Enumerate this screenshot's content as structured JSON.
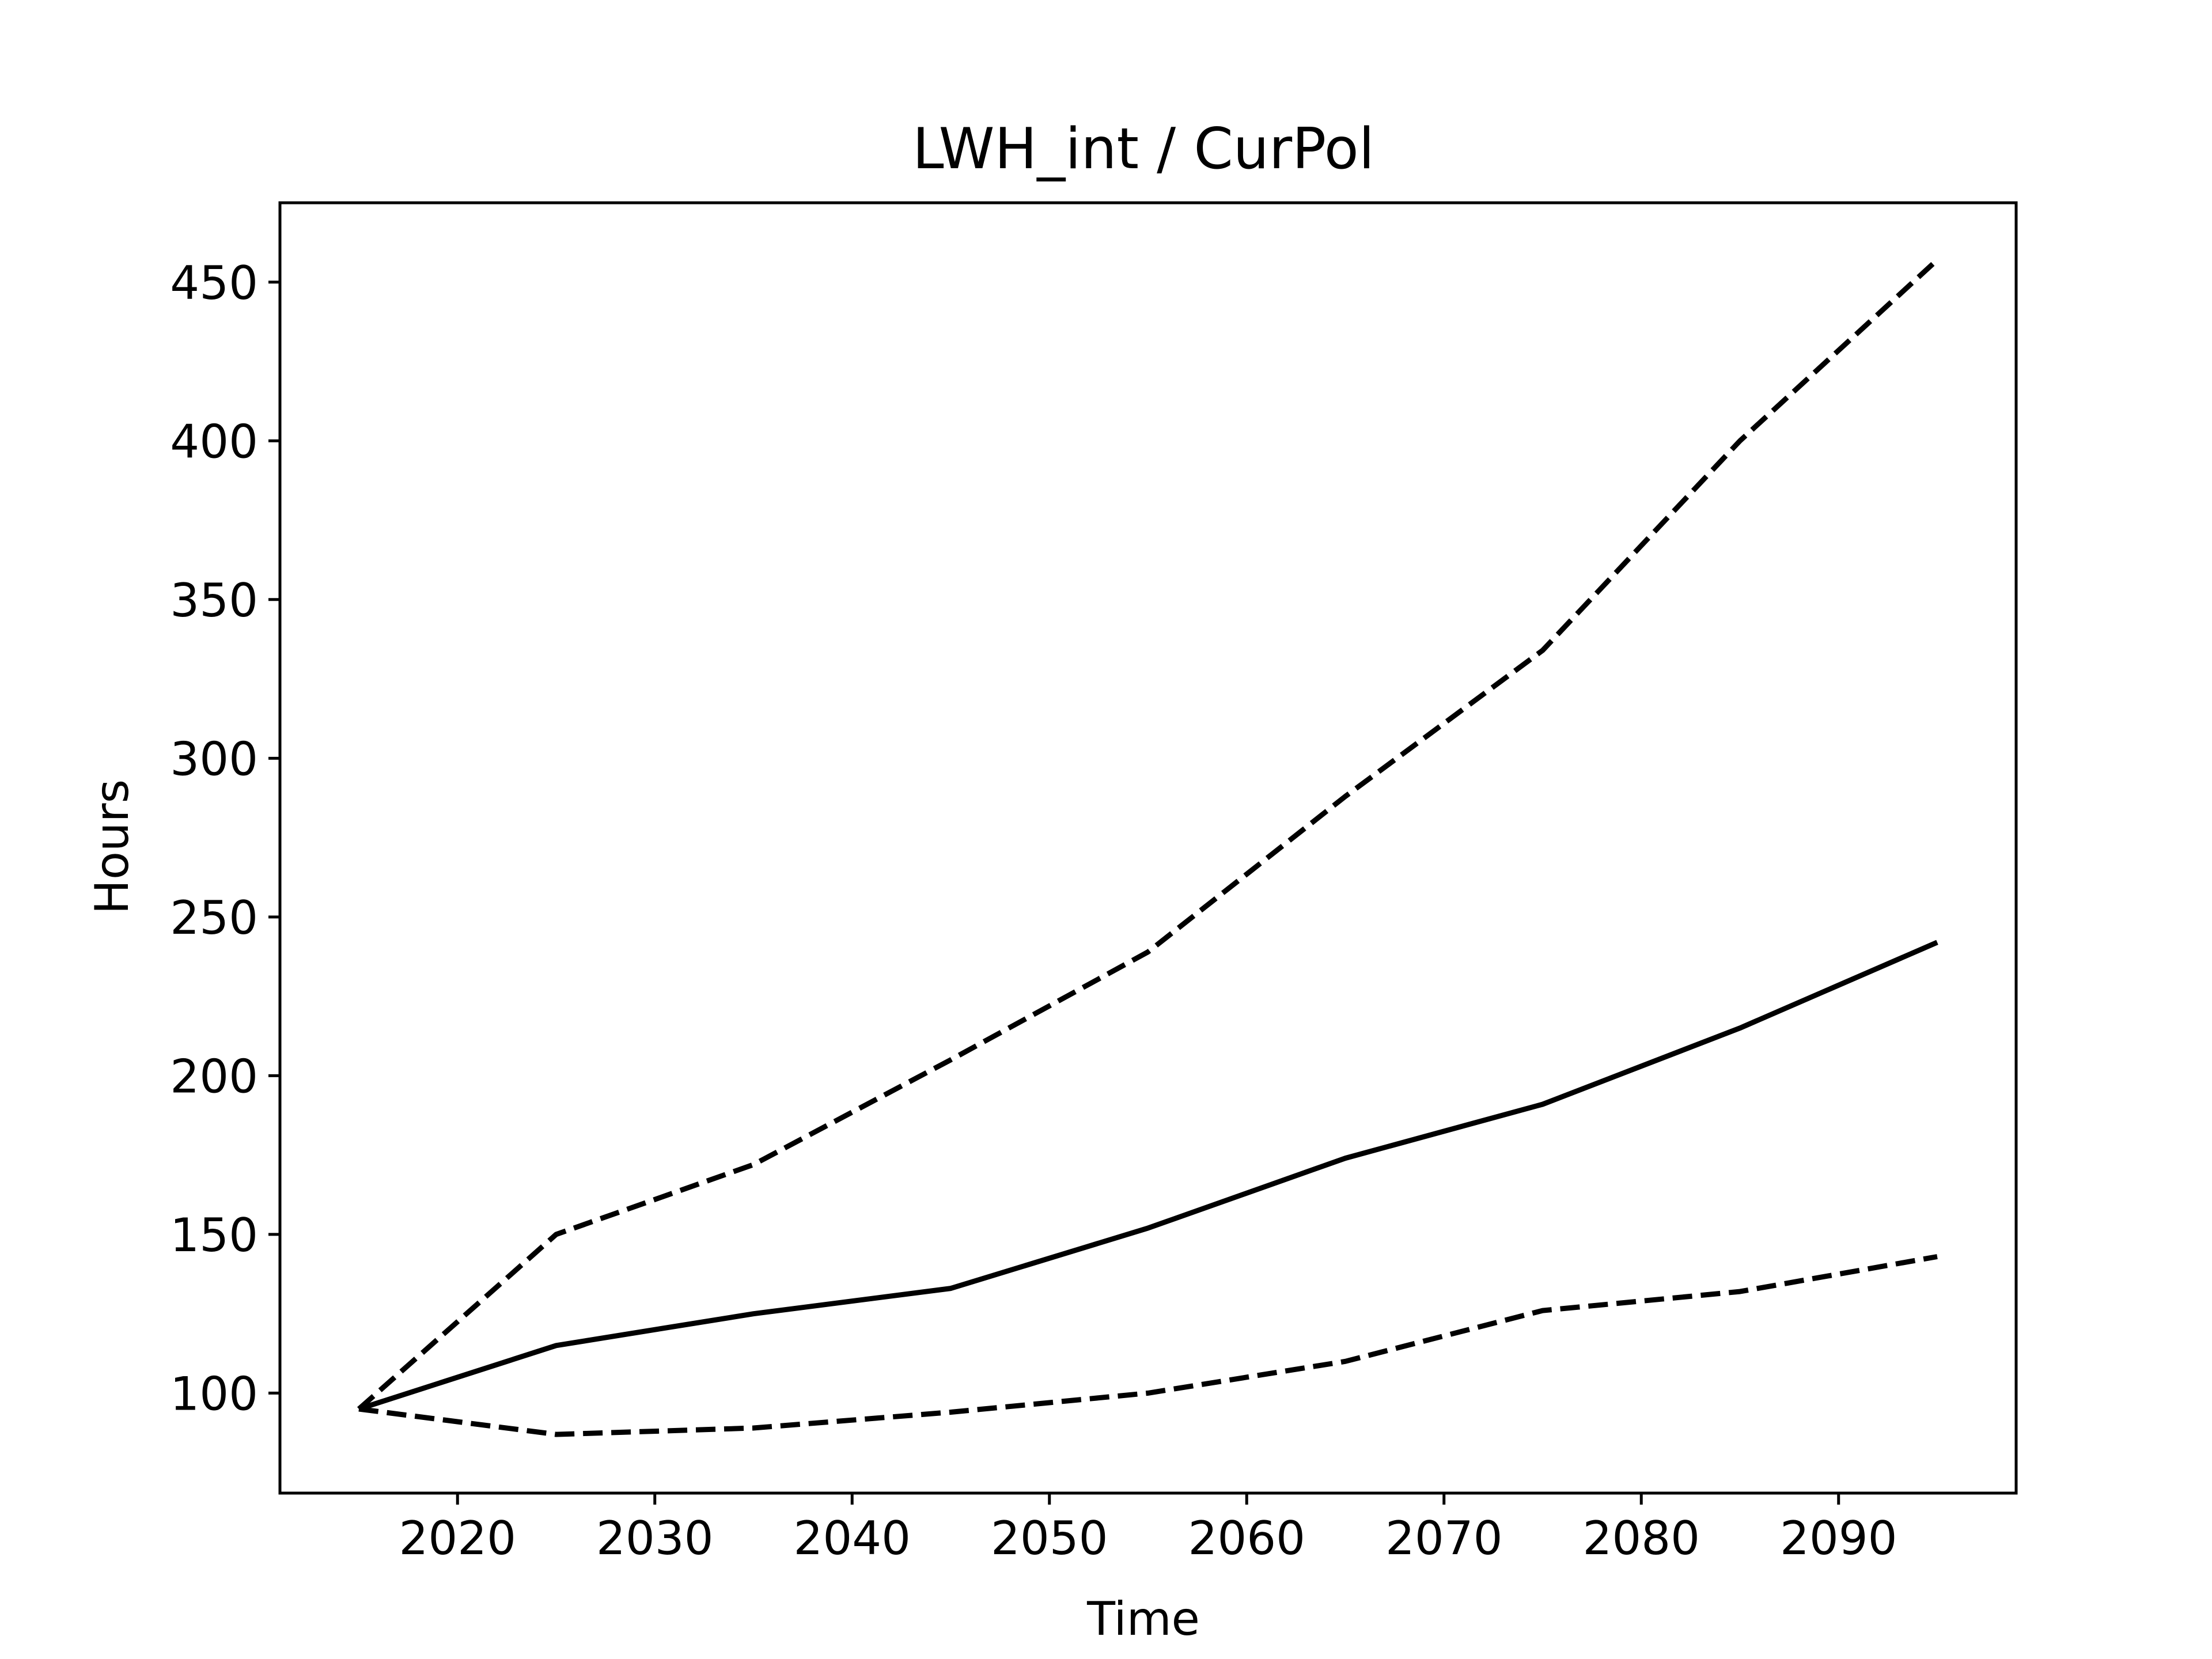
{
  "chart_data": {
    "type": "line",
    "title": "LWH_int / CurPol",
    "xlabel": "Time",
    "ylabel": "Hours",
    "xlim": [
      2011,
      2099
    ],
    "ylim": [
      68.5,
      475
    ],
    "xticks": [
      2020,
      2030,
      2040,
      2050,
      2060,
      2070,
      2080,
      2090
    ],
    "yticks": [
      100,
      150,
      200,
      250,
      300,
      350,
      400,
      450
    ],
    "grid": false,
    "legend": "none",
    "x": [
      2015,
      2025,
      2035,
      2045,
      2055,
      2065,
      2075,
      2085,
      2095
    ],
    "series": [
      {
        "style": "dashed",
        "color": "#000000",
        "values": [
          95,
          150,
          172,
          205,
          239,
          288,
          334,
          400,
          457
        ]
      },
      {
        "style": "solid",
        "color": "#000000",
        "values": [
          95,
          115,
          125,
          133,
          152,
          174,
          191,
          215,
          242
        ]
      },
      {
        "style": "dashed",
        "color": "#000000",
        "values": [
          95,
          87,
          89,
          94,
          100,
          110,
          126,
          132,
          143
        ]
      }
    ]
  }
}
